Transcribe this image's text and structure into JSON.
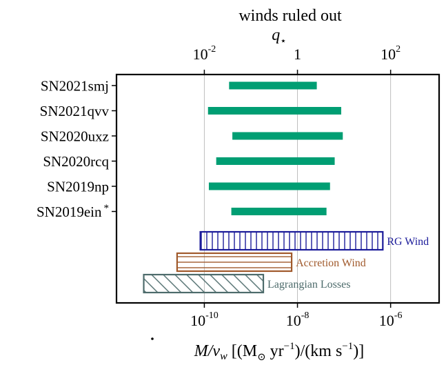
{
  "chart_data": {
    "type": "range_bar",
    "title": "winds ruled out",
    "top_axis": {
      "label": "q",
      "label_suffix": "⋆",
      "scale": "log",
      "ticks": [
        {
          "value": 0.01,
          "base": "10",
          "exp": "-2"
        },
        {
          "value": 1,
          "base": "1",
          "exp": ""
        },
        {
          "value": 100,
          "base": "10",
          "exp": "2"
        }
      ]
    },
    "bottom_axis": {
      "label_parts": {
        "mdot": "M",
        "slash": "/v",
        "w": "w",
        "units_open": " [(M",
        "sun": "⊙",
        "yr": " yr",
        "yr_exp": "−1",
        "mid": ")/(km s",
        "s_exp": "−1",
        "close": ")]"
      },
      "scale": "log",
      "ticks": [
        {
          "value": 1e-10,
          "base": "10",
          "exp": "-10"
        },
        {
          "value": 1e-08,
          "base": "10",
          "exp": "-8"
        },
        {
          "value": 1e-06,
          "base": "10",
          "exp": "-6"
        }
      ],
      "xlim": [
        1.3e-12,
        1.1e-05
      ]
    },
    "grid": "vertical",
    "series": [
      {
        "name": "SN2021smj",
        "marker": "",
        "x_min": 3.4e-10,
        "x_max": 2.6e-08,
        "color": "#009e73"
      },
      {
        "name": "SN2021qvv",
        "marker": "",
        "x_min": 1.2e-10,
        "x_max": 8.7e-08,
        "color": "#009e73"
      },
      {
        "name": "SN2020uxz",
        "marker": "",
        "x_min": 4e-10,
        "x_max": 9.4e-08,
        "color": "#009e73"
      },
      {
        "name": "SN2020rcq",
        "marker": "",
        "x_min": 1.8e-10,
        "x_max": 6.3e-08,
        "color": "#009e73"
      },
      {
        "name": "SN2019np",
        "marker": "",
        "x_min": 1.25e-10,
        "x_max": 5e-08,
        "color": "#009e73"
      },
      {
        "name": "SN2019ein",
        "marker": "*",
        "x_min": 3.8e-10,
        "x_max": 4.2e-08,
        "color": "#009e73"
      }
    ],
    "models": [
      {
        "name": "RG Wind",
        "x_min": 8.2e-11,
        "x_max": 6.8e-07,
        "hatch": "vertical",
        "color": "#1a1a99"
      },
      {
        "name": "Accretion Wind",
        "x_min": 2.6e-11,
        "x_max": 7.5e-09,
        "hatch": "horizontal",
        "color": "#a0592b"
      },
      {
        "name": "Lagrangian Losses",
        "x_min": 5e-12,
        "x_max": 1.85e-09,
        "hatch": "diagonal",
        "color": "#4d6b6b"
      }
    ]
  }
}
